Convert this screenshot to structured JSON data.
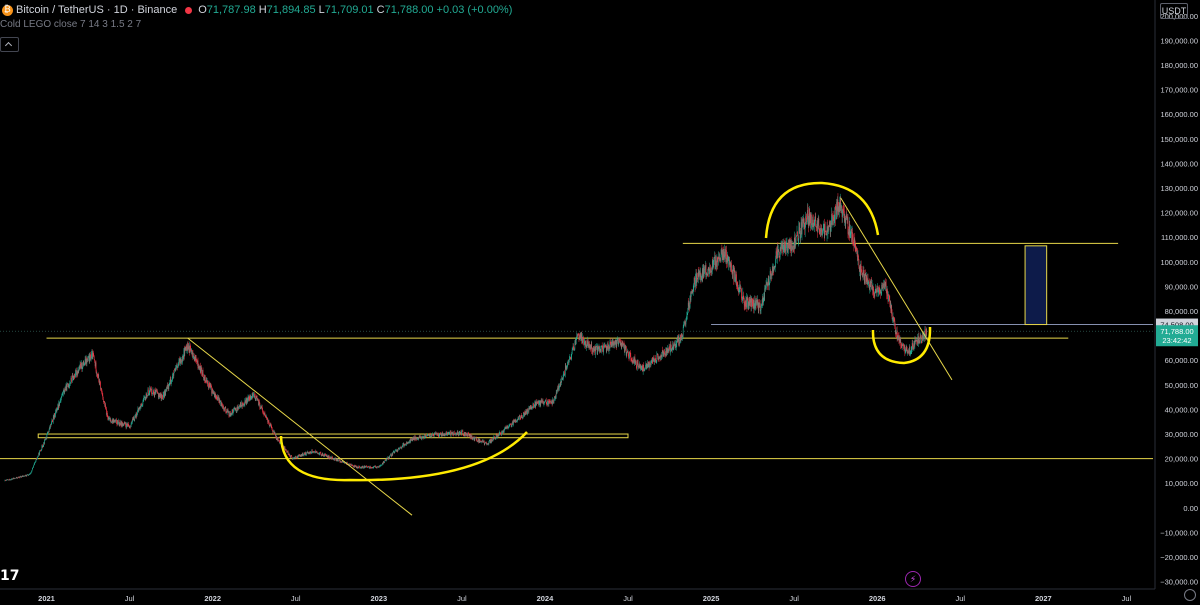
{
  "header": {
    "symbol": "Bitcoin / TetherUS · 1D · Binance",
    "ohlc": [
      {
        "k": "O",
        "v": "71,787.98"
      },
      {
        "k": "H",
        "v": "71,894.85"
      },
      {
        "k": "L",
        "v": "71,709.01"
      },
      {
        "k": "C",
        "v": "71,788.00"
      },
      {
        "k": "",
        "v": "+0.03 (+0.00%)"
      }
    ],
    "indicator": "Cold LEGO close 7 14 3 1.5 2 7",
    "currency": "USDT",
    "logo": "17"
  },
  "icons": {
    "symbol": "bitcoin-icon",
    "status": "red-dot-icon",
    "collapse": "chevron-up-icon",
    "bolt": "bolt-icon",
    "settings": "gear-icon"
  },
  "colors": {
    "up": "#22ab94",
    "down": "#f23645",
    "drawing": "#e8d84a",
    "marker": "#ffeb00",
    "box_fill": "#0d1b4a",
    "last_price": "#22ab94",
    "level_label": "#d1d4dc"
  },
  "chart_data": {
    "type": "candlestick",
    "x_ticks": [
      "2021",
      "Jul",
      "2022",
      "Jul",
      "2023",
      "Jul",
      "2024",
      "Jul",
      "2025",
      "Jul",
      "2026",
      "Jul",
      "2027",
      "Jul"
    ],
    "y_ticks": [
      "200,000.00",
      "190,000.00",
      "180,000.00",
      "170,000.00",
      "160,000.00",
      "150,000.00",
      "140,000.00",
      "130,000.00",
      "120,000.00",
      "110,000.00",
      "100,000.00",
      "90,000.00",
      "80,000.00",
      "70,000.00",
      "60,000.00",
      "50,000.00",
      "40,000.00",
      "30,000.00",
      "20,000.00",
      "10,000.00",
      "0.00",
      "−10,000.00",
      "−20,000.00",
      "−30,000.00"
    ],
    "ylim": [
      -33000,
      204000
    ],
    "xlim": [
      2020.72,
      2027.66
    ],
    "price_anchors": [
      [
        2020.75,
        11000
      ],
      [
        2020.9,
        13500
      ],
      [
        2021.0,
        29000
      ],
      [
        2021.1,
        47000
      ],
      [
        2021.2,
        57000
      ],
      [
        2021.28,
        62000
      ],
      [
        2021.37,
        36000
      ],
      [
        2021.5,
        33000
      ],
      [
        2021.62,
        48000
      ],
      [
        2021.7,
        45000
      ],
      [
        2021.85,
        66000
      ],
      [
        2021.92,
        57000
      ],
      [
        2022.0,
        47000
      ],
      [
        2022.1,
        38000
      ],
      [
        2022.25,
        46000
      ],
      [
        2022.38,
        29000
      ],
      [
        2022.48,
        20000
      ],
      [
        2022.6,
        23000
      ],
      [
        2022.75,
        19500
      ],
      [
        2022.87,
        16500
      ],
      [
        2023.0,
        16600
      ],
      [
        2023.1,
        23000
      ],
      [
        2023.2,
        28000
      ],
      [
        2023.3,
        29500
      ],
      [
        2023.5,
        30500
      ],
      [
        2023.65,
        26000
      ],
      [
        2023.8,
        34000
      ],
      [
        2023.95,
        42500
      ],
      [
        2024.05,
        43000
      ],
      [
        2024.2,
        70000
      ],
      [
        2024.3,
        64000
      ],
      [
        2024.45,
        67000
      ],
      [
        2024.58,
        56000
      ],
      [
        2024.72,
        63000
      ],
      [
        2024.82,
        69000
      ],
      [
        2024.9,
        92000
      ],
      [
        2025.0,
        98000
      ],
      [
        2025.08,
        104000
      ],
      [
        2025.2,
        84000
      ],
      [
        2025.3,
        82000
      ],
      [
        2025.4,
        104000
      ],
      [
        2025.5,
        108000
      ],
      [
        2025.58,
        118000
      ],
      [
        2025.7,
        112000
      ],
      [
        2025.77,
        124000
      ],
      [
        2025.85,
        110000
      ],
      [
        2025.9,
        96000
      ],
      [
        2025.98,
        88000
      ],
      [
        2026.05,
        90000
      ],
      [
        2026.12,
        70000
      ],
      [
        2026.18,
        63000
      ],
      [
        2026.25,
        68000
      ],
      [
        2026.3,
        71788
      ]
    ],
    "drawings": {
      "horizontal_levels": [
        {
          "from": 2021.0,
          "to": 2027.15,
          "y": 69000
        },
        {
          "from": 2020.72,
          "to": 2027.66,
          "y": 20000
        },
        {
          "from": 2024.83,
          "to": 2027.45,
          "y": 107500
        },
        {
          "from": 2025.0,
          "to": 2027.66,
          "y": 74508
        }
      ],
      "channel_band": {
        "from": 2020.95,
        "to": 2024.5,
        "y1": 28500,
        "y2": 30000
      },
      "trendlines": [
        {
          "x1": 2021.85,
          "y1": 69000,
          "x2": 2023.2,
          "y2": -3000
        },
        {
          "x1": 2025.78,
          "y1": 126000,
          "x2": 2026.45,
          "y2": 52000
        }
      ],
      "long_box": {
        "from": 2026.89,
        "to": 2027.02,
        "y_top": 106500,
        "y_bottom": 74508
      }
    },
    "price_labels": {
      "level": "74,508.00",
      "last": "71,788.00",
      "countdown": "23:42:42"
    }
  }
}
